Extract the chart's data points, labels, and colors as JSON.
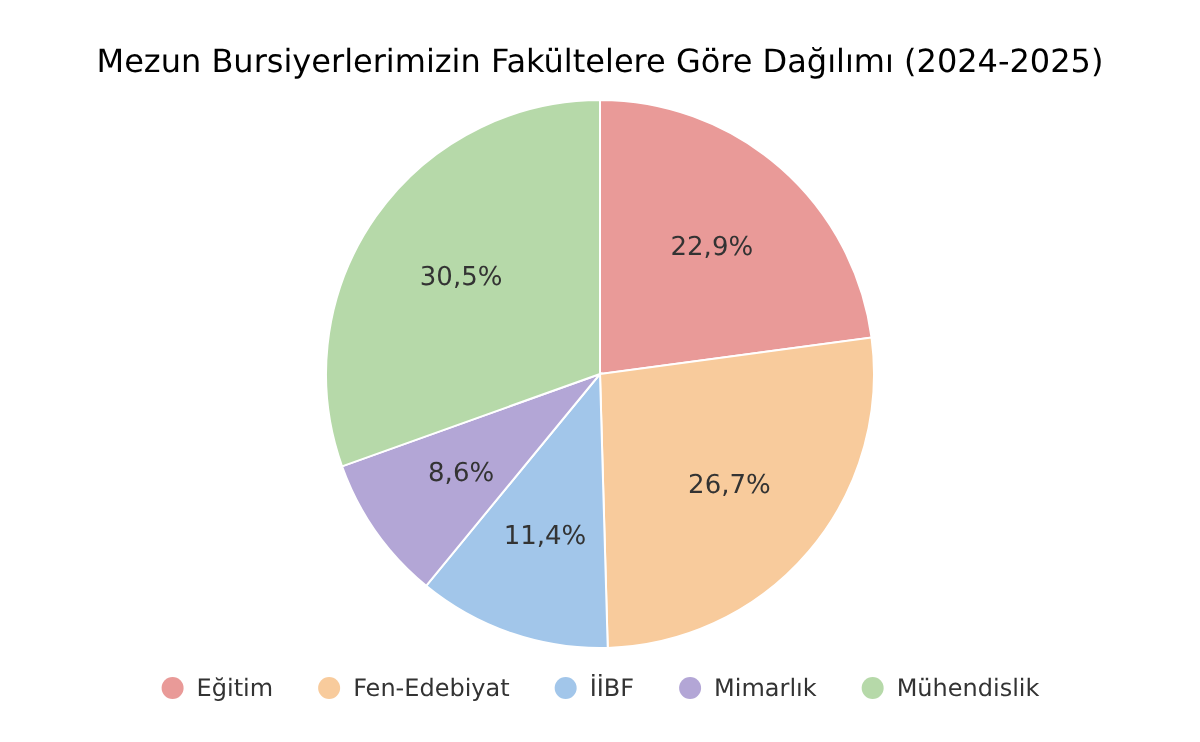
{
  "chart_data": {
    "type": "pie",
    "title": "Mezun Bursiyerlerimizin Fakültelere Göre Dağılımı (2024-2025)",
    "categories": [
      "Eğitim",
      "Fen-Edebiyat",
      "İİBF",
      "Mimarlık",
      "Mühendislik"
    ],
    "values": [
      22.9,
      26.7,
      11.4,
      8.6,
      30.5
    ],
    "colors": [
      "#e99a98",
      "#f8cb9c",
      "#a2c6ea",
      "#b3a6d6",
      "#b6d9a9"
    ],
    "value_labels": [
      "22,9%",
      "26,7%",
      "11,4%",
      "8,6%",
      "30,5%"
    ],
    "legend": "bottom"
  }
}
